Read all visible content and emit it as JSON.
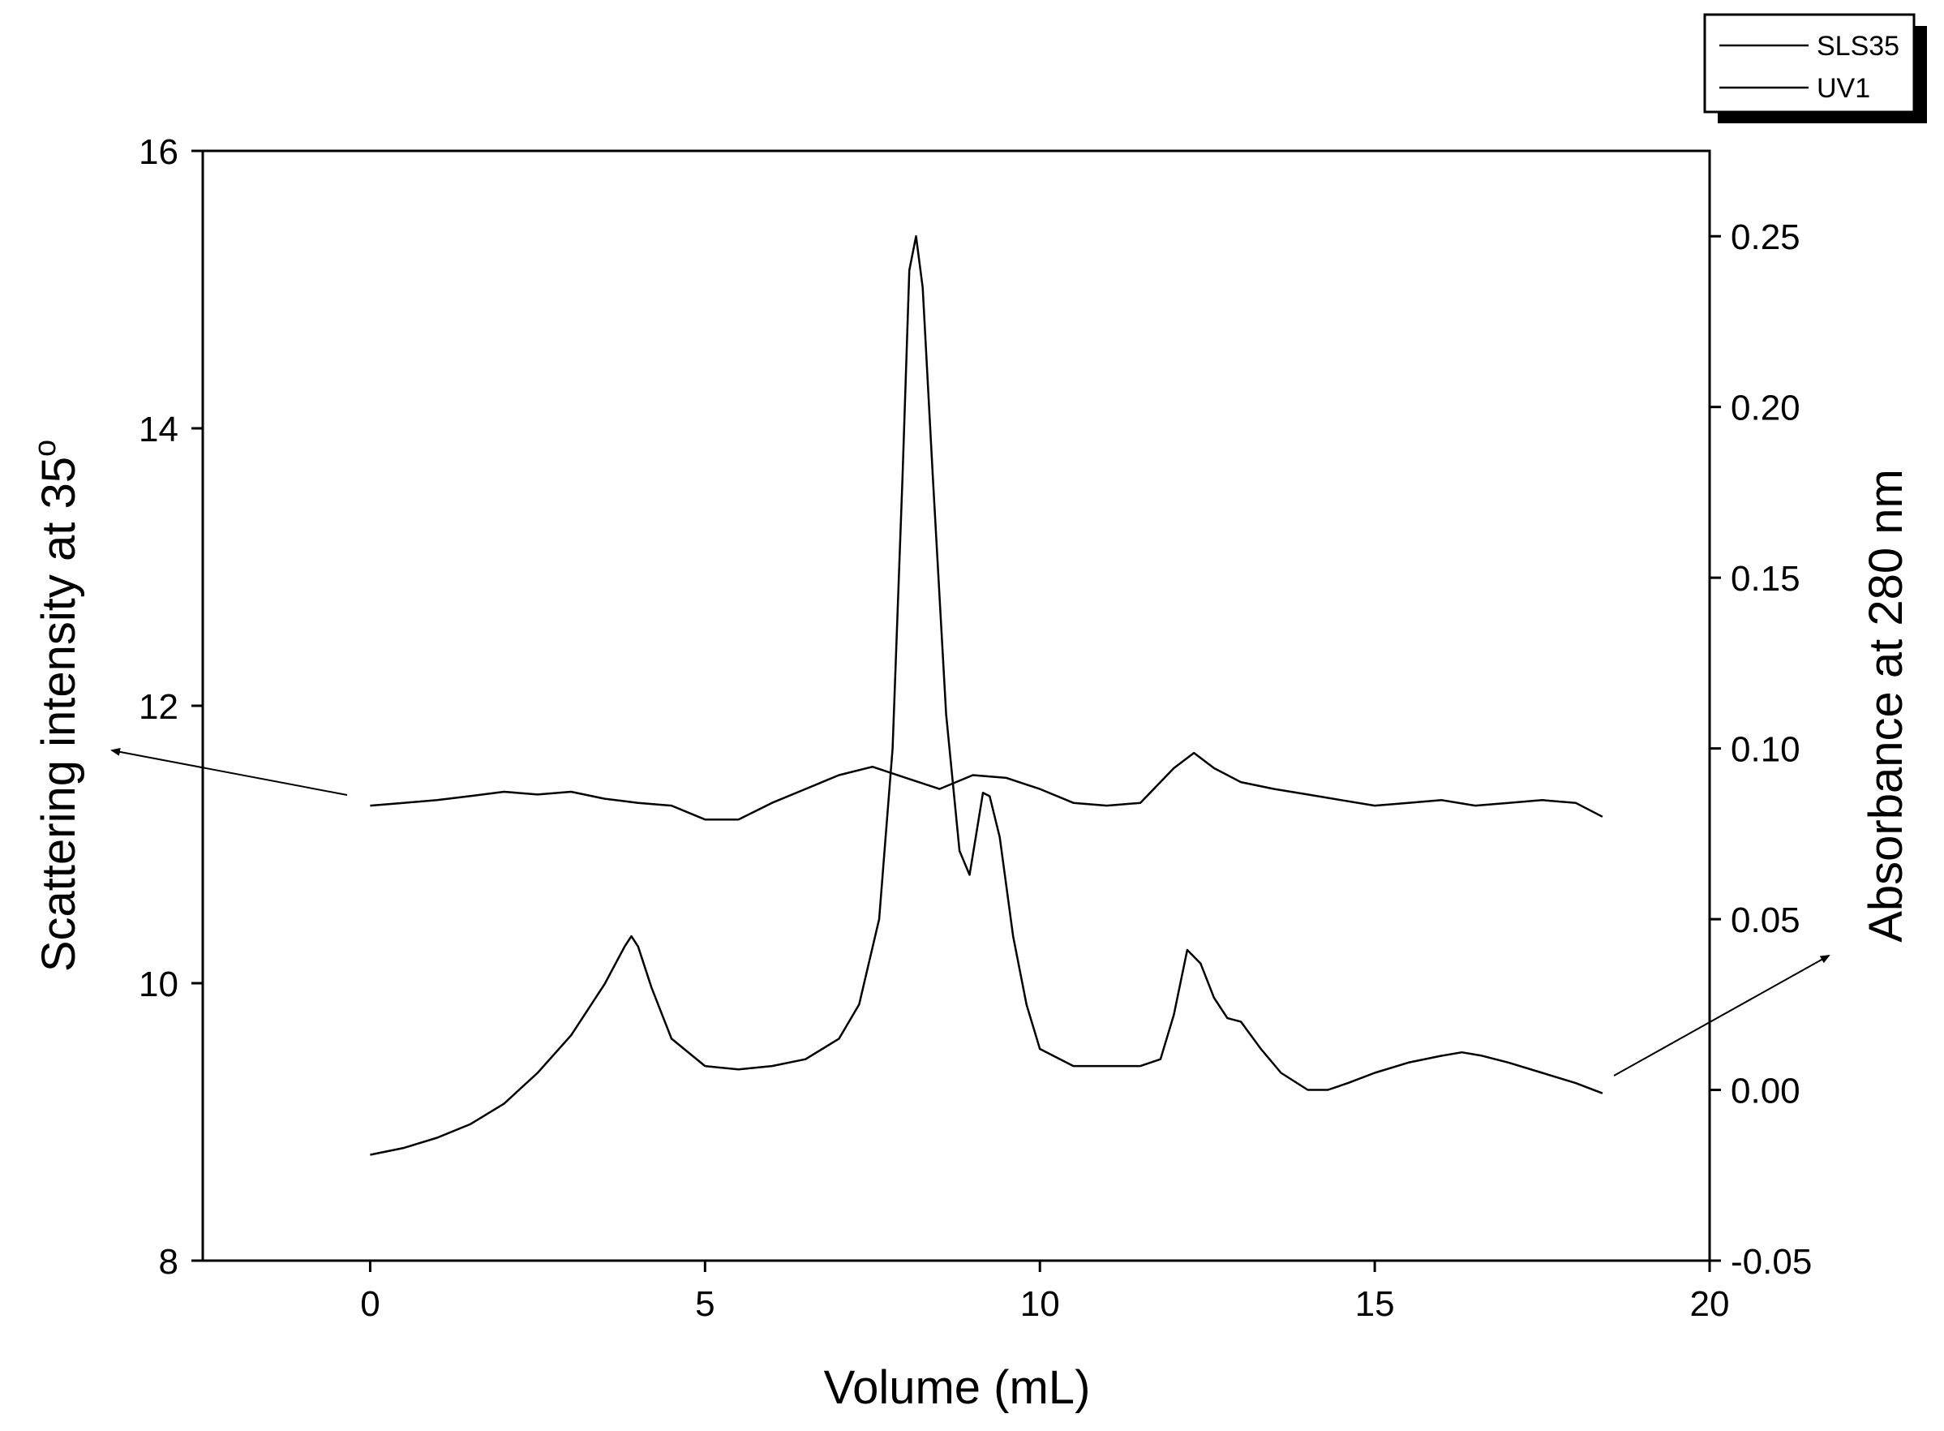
{
  "chart_data": {
    "type": "line",
    "title": "",
    "xlabel": "Volume (mL)",
    "ylabel_left": "Scattering intensity at 35",
    "ylabel_left_superscript": "o",
    "ylabel_right": "Absorbance at 280 nm",
    "xlim": [
      -2.5,
      20
    ],
    "ylim_left": [
      8,
      16
    ],
    "ylim_right": [
      -0.05,
      0.275
    ],
    "x_ticks": [
      0,
      5,
      10,
      15,
      20
    ],
    "y_left_ticks": [
      8,
      10,
      12,
      14,
      16
    ],
    "y_right_ticks": [
      -0.05,
      0.0,
      0.05,
      0.1,
      0.15,
      0.2,
      0.25
    ],
    "y_right_tick_labels": [
      "-0.05",
      "0.00",
      "0.05",
      "0.10",
      "0.15",
      "0.20",
      "0.25"
    ],
    "legend_position": "top-right",
    "grid": false,
    "series": [
      {
        "name": "SLS35",
        "axis": "left",
        "color": "#000000",
        "x": [
          0,
          0.5,
          1.0,
          1.5,
          2.0,
          2.5,
          3.0,
          3.5,
          4.0,
          4.5,
          5.0,
          5.5,
          6.0,
          6.5,
          7.0,
          7.5,
          8.0,
          8.5,
          9.0,
          9.5,
          10.0,
          10.5,
          11.0,
          11.5,
          12.0,
          12.3,
          12.6,
          13.0,
          13.5,
          14.0,
          14.5,
          15.0,
          15.5,
          16.0,
          16.5,
          17.0,
          17.5,
          18.0,
          18.4
        ],
        "y": [
          11.28,
          11.3,
          11.32,
          11.35,
          11.38,
          11.36,
          11.38,
          11.33,
          11.3,
          11.28,
          11.18,
          11.18,
          11.3,
          11.4,
          11.5,
          11.56,
          11.48,
          11.4,
          11.5,
          11.48,
          11.4,
          11.3,
          11.28,
          11.3,
          11.55,
          11.66,
          11.55,
          11.45,
          11.4,
          11.36,
          11.32,
          11.28,
          11.3,
          11.32,
          11.28,
          11.3,
          11.32,
          11.3,
          11.2
        ]
      },
      {
        "name": "UV1",
        "axis": "right",
        "color": "#000000",
        "x": [
          0,
          0.5,
          1.0,
          1.5,
          2.0,
          2.5,
          3.0,
          3.5,
          3.8,
          3.9,
          4.0,
          4.2,
          4.5,
          5.0,
          5.5,
          6.0,
          6.5,
          7.0,
          7.3,
          7.6,
          7.8,
          7.95,
          8.05,
          8.15,
          8.25,
          8.4,
          8.6,
          8.8,
          8.95,
          9.05,
          9.15,
          9.25,
          9.4,
          9.6,
          9.8,
          10.0,
          10.5,
          11.0,
          11.5,
          11.8,
          12.0,
          12.2,
          12.4,
          12.6,
          12.8,
          13.0,
          13.3,
          13.6,
          14.0,
          14.3,
          14.6,
          15.0,
          15.5,
          16.0,
          16.3,
          16.6,
          17.0,
          17.5,
          18.0,
          18.4
        ],
        "y": [
          -0.019,
          -0.017,
          -0.014,
          -0.01,
          -0.004,
          0.005,
          0.016,
          0.031,
          0.042,
          0.045,
          0.042,
          0.03,
          0.015,
          0.007,
          0.006,
          0.007,
          0.009,
          0.015,
          0.025,
          0.05,
          0.1,
          0.18,
          0.24,
          0.25,
          0.235,
          0.18,
          0.11,
          0.07,
          0.063,
          0.075,
          0.087,
          0.086,
          0.074,
          0.045,
          0.025,
          0.012,
          0.007,
          0.007,
          0.007,
          0.009,
          0.022,
          0.041,
          0.037,
          0.027,
          0.021,
          0.02,
          0.012,
          0.005,
          0.0,
          0.0,
          0.002,
          0.005,
          0.008,
          0.01,
          0.011,
          0.01,
          0.008,
          0.005,
          0.002,
          -0.001
        ]
      }
    ]
  }
}
